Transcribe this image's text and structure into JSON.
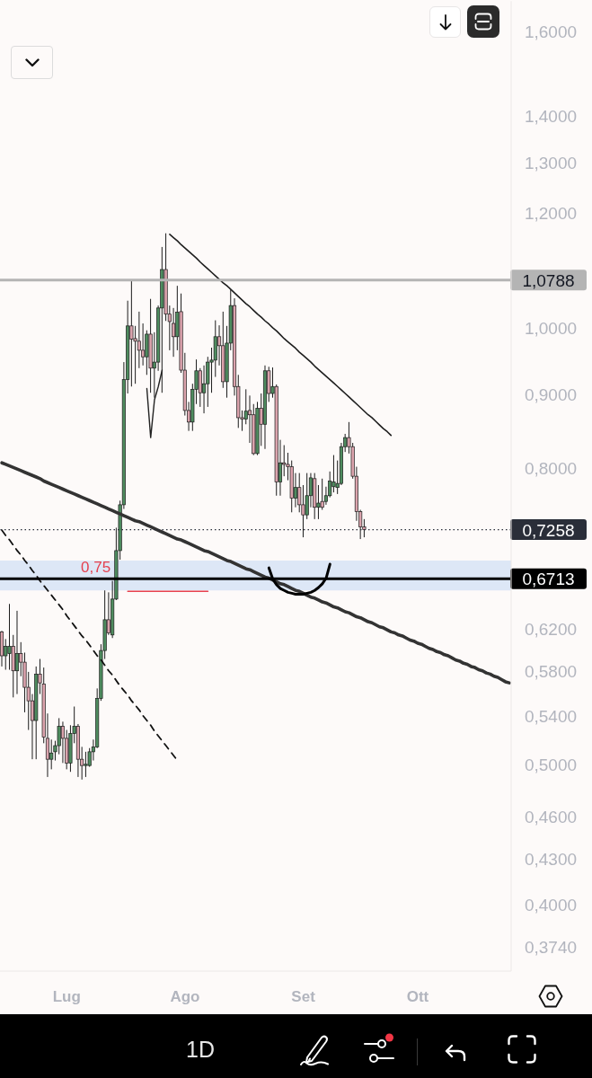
{
  "chart_data": {
    "type": "candlestick",
    "categories": [
      null,
      null,
      null,
      null,
      null,
      null,
      null,
      null,
      null,
      null,
      null,
      null,
      null,
      null,
      null,
      null,
      null,
      "Lug",
      null,
      null,
      null,
      null,
      null,
      null,
      null,
      null,
      null,
      null,
      null,
      null,
      null,
      null,
      null,
      null,
      null,
      null,
      null,
      null,
      null,
      null,
      null,
      null,
      null,
      null,
      null,
      null,
      null,
      null,
      "Ago",
      null,
      null,
      null,
      null,
      null,
      null,
      null,
      null,
      null,
      null,
      null,
      null,
      null,
      null,
      null,
      null,
      null,
      null,
      null,
      null,
      null,
      null,
      null,
      null,
      null,
      null,
      null,
      null,
      null,
      null,
      "Set",
      null,
      null,
      null,
      null,
      null,
      null,
      null,
      null,
      null,
      null,
      null,
      null,
      null,
      null,
      null,
      null,
      null,
      null,
      null,
      null,
      null,
      null,
      null,
      null,
      null,
      null,
      null,
      null,
      null,
      "Ott",
      null,
      null,
      null,
      null,
      null,
      null,
      null,
      null,
      null,
      null,
      null,
      null,
      null,
      null,
      null,
      null,
      null,
      null,
      null,
      null,
      null,
      null,
      null,
      null
    ],
    "ohlc": [
      [
        0.617,
        0.618,
        0.584,
        0.594
      ],
      [
        0.594,
        0.61,
        0.581,
        0.603
      ],
      [
        0.596,
        0.645,
        0.581,
        0.603
      ],
      [
        0.603,
        0.614,
        0.556,
        0.58
      ],
      [
        0.58,
        0.638,
        0.559,
        0.596
      ],
      [
        0.596,
        0.607,
        0.575,
        0.588
      ],
      [
        0.588,
        0.597,
        0.543,
        0.565
      ],
      [
        0.565,
        0.579,
        0.528,
        0.553
      ],
      [
        0.553,
        0.559,
        0.504,
        0.536
      ],
      [
        0.536,
        0.584,
        0.504,
        0.577
      ],
      [
        0.577,
        0.591,
        0.559,
        0.569
      ],
      [
        0.568,
        0.583,
        0.517,
        0.522
      ],
      [
        0.521,
        0.542,
        0.49,
        0.504
      ],
      [
        0.504,
        0.52,
        0.496,
        0.509
      ],
      [
        0.51,
        0.519,
        0.503,
        0.515
      ],
      [
        0.515,
        0.538,
        0.508,
        0.531
      ],
      [
        0.531,
        0.535,
        0.501,
        0.521
      ],
      [
        0.521,
        0.528,
        0.496,
        0.501
      ],
      [
        0.501,
        0.532,
        0.494,
        0.525
      ],
      [
        0.525,
        0.548,
        0.517,
        0.531
      ],
      [
        0.531,
        0.533,
        0.49,
        0.504
      ],
      [
        0.504,
        0.514,
        0.488,
        0.499
      ],
      [
        0.499,
        0.51,
        0.49,
        0.5
      ],
      [
        0.499,
        0.513,
        0.498,
        0.51
      ],
      [
        0.51,
        0.52,
        0.503,
        0.514
      ],
      [
        0.514,
        0.564,
        0.513,
        0.555
      ],
      [
        0.555,
        0.605,
        0.553,
        0.599
      ],
      [
        0.599,
        0.659,
        0.591,
        0.629
      ],
      [
        0.629,
        0.657,
        0.614,
        0.616
      ],
      [
        0.614,
        0.669,
        0.611,
        0.65
      ],
      [
        0.65,
        0.728,
        0.649,
        0.702
      ],
      [
        0.702,
        0.76,
        0.692,
        0.755
      ],
      [
        0.755,
        0.947,
        0.75,
        0.921
      ],
      [
        0.921,
        1.044,
        0.901,
        1.003
      ],
      [
        1.003,
        1.079,
        0.911,
        0.982
      ],
      [
        0.983,
        1.003,
        0.915,
        0.979
      ],
      [
        0.979,
        1.026,
        0.938,
        0.965
      ],
      [
        0.965,
        1.007,
        0.942,
        0.955
      ],
      [
        0.955,
        0.996,
        0.928,
        0.99
      ],
      [
        0.99,
        1.047,
        0.902,
        0.938
      ],
      [
        0.938,
        0.993,
        0.895,
        0.947
      ],
      [
        0.947,
        1.036,
        0.934,
        1.032
      ],
      [
        1.032,
        1.137,
        0.902,
        1.097
      ],
      [
        1.097,
        1.162,
        1.011,
        1.022
      ],
      [
        1.022,
        1.036,
        0.965,
        1.01
      ],
      [
        1.007,
        1.032,
        0.955,
        0.986
      ],
      [
        0.986,
        1.069,
        0.965,
        1.025
      ],
      [
        1.026,
        1.056,
        0.931,
        0.935
      ],
      [
        0.935,
        0.961,
        0.87,
        0.877
      ],
      [
        0.877,
        0.889,
        0.849,
        0.861
      ],
      [
        0.861,
        0.915,
        0.849,
        0.907
      ],
      [
        0.907,
        0.951,
        0.886,
        0.934
      ],
      [
        0.934,
        0.938,
        0.882,
        0.902
      ],
      [
        0.902,
        0.942,
        0.873,
        0.915
      ],
      [
        0.915,
        0.955,
        0.882,
        0.947
      ],
      [
        0.947,
        0.969,
        0.902,
        0.95
      ],
      [
        0.95,
        1.012,
        0.925,
        0.986
      ],
      [
        0.986,
        1.004,
        0.942,
        0.972
      ],
      [
        0.972,
        1.026,
        0.909,
        0.918
      ],
      [
        0.918,
        1.003,
        0.895,
        0.976
      ],
      [
        0.976,
        1.062,
        0.965,
        1.036
      ],
      [
        1.036,
        1.048,
        0.898,
        0.911
      ],
      [
        0.911,
        0.928,
        0.853,
        0.867
      ],
      [
        0.867,
        0.877,
        0.849,
        0.865
      ],
      [
        0.865,
        0.907,
        0.858,
        0.876
      ],
      [
        0.877,
        0.898,
        0.833,
        0.871
      ],
      [
        0.871,
        0.886,
        0.817,
        0.819
      ],
      [
        0.819,
        0.889,
        0.817,
        0.88
      ],
      [
        0.88,
        0.901,
        0.829,
        0.858
      ],
      [
        0.858,
        0.942,
        0.825,
        0.934
      ],
      [
        0.934,
        0.94,
        0.889,
        0.901
      ],
      [
        0.901,
        0.939,
        0.895,
        0.911
      ],
      [
        0.911,
        0.914,
        0.766,
        0.783
      ],
      [
        0.783,
        0.837,
        0.766,
        0.807
      ],
      [
        0.807,
        0.83,
        0.79,
        0.805
      ],
      [
        0.805,
        0.82,
        0.785,
        0.802
      ],
      [
        0.802,
        0.81,
        0.746,
        0.763
      ],
      [
        0.763,
        0.794,
        0.752,
        0.776
      ],
      [
        0.776,
        0.794,
        0.746,
        0.755
      ],
      [
        0.755,
        0.779,
        0.717,
        0.743
      ],
      [
        0.743,
        0.794,
        0.738,
        0.766
      ],
      [
        0.766,
        0.794,
        0.752,
        0.788
      ],
      [
        0.787,
        0.794,
        0.738,
        0.752
      ],
      [
        0.752,
        0.779,
        0.738,
        0.757
      ],
      [
        0.759,
        0.787,
        0.749,
        0.752
      ],
      [
        0.759,
        0.777,
        0.755,
        0.766
      ],
      [
        0.766,
        0.796,
        0.764,
        0.784
      ],
      [
        0.777,
        0.817,
        0.77,
        0.783
      ],
      [
        0.776,
        0.81,
        0.768,
        0.781
      ],
      [
        0.781,
        0.833,
        0.779,
        0.828
      ],
      [
        0.828,
        0.845,
        0.821,
        0.84
      ],
      [
        0.84,
        0.861,
        0.819,
        0.828
      ],
      [
        0.828,
        0.833,
        0.787,
        0.79
      ],
      [
        0.79,
        0.802,
        0.736,
        0.747
      ],
      [
        0.747,
        0.749,
        0.715,
        0.729
      ],
      [
        0.729,
        0.738,
        0.717,
        0.7258
      ],
      null,
      null,
      null,
      null,
      null,
      null,
      null,
      null,
      null,
      null,
      null,
      null,
      null,
      null,
      null,
      null,
      null,
      null,
      null,
      null,
      null,
      null,
      null,
      null,
      null,
      null,
      null,
      null,
      null,
      null,
      null,
      null,
      null,
      null,
      null,
      null,
      null,
      null
    ],
    "colors": [
      "#dba3ad",
      "#4e8c5f",
      "#4e8c5f",
      "#dba3ad",
      "#4e8c5f",
      "#dba3ad",
      "#dba3ad",
      "#dba3ad",
      "#dba3ad",
      "#4e8c5f",
      "#dba3ad",
      "#dba3ad",
      "#dba3ad",
      "#4e8c5f",
      "#4e8c5f",
      "#4e8c5f",
      "#dba3ad",
      "#dba3ad",
      "#4e8c5f",
      "#4e8c5f",
      "#dba3ad",
      "#dba3ad",
      "#4e8c5f",
      "#4e8c5f",
      "#4e8c5f",
      "#4e8c5f",
      "#4e8c5f",
      "#4e8c5f",
      "#dba3ad",
      "#4e8c5f",
      "#4e8c5f",
      "#4e8c5f",
      "#4e8c5f",
      "#4e8c5f",
      "#dba3ad",
      "#dba3ad",
      "#dba3ad",
      "#dba3ad",
      "#4e8c5f",
      "#dba3ad",
      "#4e8c5f",
      "#4e8c5f",
      "#4e8c5f",
      "#dba3ad",
      "#dba3ad",
      "#dba3ad",
      "#4e8c5f",
      "#dba3ad",
      "#dba3ad",
      "#dba3ad",
      "#4e8c5f",
      "#4e8c5f",
      "#dba3ad",
      "#4e8c5f",
      "#4e8c5f",
      "#4e8c5f",
      "#4e8c5f",
      "#dba3ad",
      "#dba3ad",
      "#4e8c5f",
      "#4e8c5f",
      "#dba3ad",
      "#dba3ad",
      "#dba3ad",
      "#4e8c5f",
      "#dba3ad",
      "#dba3ad",
      "#4e8c5f",
      "#dba3ad",
      "#4e8c5f",
      "#dba3ad",
      "#4e8c5f",
      "#dba3ad",
      "#4e8c5f",
      "#dba3ad",
      "#dba3ad",
      "#dba3ad",
      "#4e8c5f",
      "#dba3ad",
      "#dba3ad",
      "#4e8c5f",
      "#4e8c5f",
      "#dba3ad",
      "#4e8c5f",
      "#dba3ad",
      "#4e8c5f",
      "#4e8c5f",
      "#4e8c5f",
      "#4e8c5f",
      "#4e8c5f",
      "#4e8c5f",
      "#dba3ad",
      "#dba3ad",
      "#dba3ad",
      "#dba3ad",
      "#dba3ad",
      null,
      null,
      null,
      null,
      null,
      null,
      null,
      null,
      null,
      null,
      null,
      null,
      null,
      null,
      null,
      null,
      null,
      null,
      null,
      null,
      null,
      null,
      null,
      null,
      null,
      null,
      null,
      null,
      null,
      null,
      null,
      null,
      null,
      null,
      null,
      null,
      null,
      null
    ],
    "series": [
      {
        "type": "line",
        "color": "#1e1e1e",
        "values": [
          null,
          null,
          null,
          null,
          null,
          null,
          null,
          null,
          null,
          null,
          null,
          null,
          null,
          null,
          null,
          null,
          null,
          null,
          null,
          null,
          null,
          null,
          null,
          null,
          null,
          null,
          null,
          null,
          null,
          null,
          null,
          null,
          null,
          null,
          null,
          null,
          null,
          null,
          null,
          null,
          null,
          null,
          null,
          null,
          1.16,
          1.154,
          1.148,
          1.141,
          1.135,
          1.129,
          1.123,
          1.117,
          1.11,
          1.104,
          1.098,
          1.092,
          1.086,
          1.08,
          1.074,
          1.069,
          1.063,
          1.057,
          1.051,
          1.045,
          1.039,
          1.034,
          1.028,
          1.022,
          1.017,
          1.011,
          1.006,
          1.0,
          0.995,
          0.989,
          0.983,
          0.978,
          0.973,
          0.968,
          0.962,
          0.957,
          0.952,
          0.947,
          0.941,
          0.936,
          0.931,
          0.926,
          0.921,
          0.916,
          0.911,
          0.906,
          0.901,
          0.896,
          0.891,
          0.886,
          0.881,
          0.876,
          0.871,
          0.867,
          0.862,
          0.857,
          0.852,
          0.848,
          0.843,
          null,
          null,
          null,
          null,
          null,
          null,
          null,
          null,
          null,
          null,
          null,
          null,
          null,
          null,
          null,
          null,
          null,
          null,
          null,
          null,
          null,
          null,
          null,
          null,
          null,
          null,
          null,
          null,
          null,
          null,
          null
        ]
      },
      {
        "type": "line",
        "color": "#333333",
        "values": [
          0.807,
          0.805,
          0.803,
          0.801,
          0.799,
          0.797,
          0.795,
          0.793,
          0.791,
          0.789,
          0.787,
          0.784,
          0.782,
          0.78,
          0.778,
          0.776,
          0.774,
          0.772,
          0.77,
          0.768,
          0.766,
          0.764,
          0.762,
          0.76,
          0.758,
          0.756,
          0.754,
          0.752,
          0.75,
          0.748,
          0.746,
          0.744,
          0.742,
          0.74,
          0.738,
          0.736,
          0.735,
          0.733,
          0.731,
          0.729,
          0.727,
          0.725,
          0.723,
          0.721,
          0.719,
          0.717,
          0.715,
          0.714,
          0.712,
          0.71,
          0.708,
          0.706,
          0.704,
          0.702,
          0.701,
          0.699,
          0.697,
          0.695,
          0.693,
          0.691,
          0.69,
          0.688,
          0.686,
          0.684,
          0.682,
          0.681,
          0.679,
          0.677,
          0.675,
          0.673,
          0.672,
          0.67,
          0.668,
          0.666,
          0.665,
          0.663,
          0.661,
          0.659,
          0.658,
          0.656,
          0.654,
          0.652,
          0.651,
          0.649,
          0.647,
          0.646,
          0.644,
          0.642,
          0.641,
          0.639,
          0.637,
          0.636,
          0.634,
          0.632,
          0.631,
          0.629,
          0.627,
          0.626,
          0.624,
          0.622,
          0.621,
          0.619,
          0.617,
          0.616,
          0.614,
          0.613,
          0.611,
          0.609,
          0.608,
          0.606,
          0.605,
          0.603,
          0.601,
          0.6,
          0.598,
          0.597,
          0.595,
          0.594,
          0.592,
          0.59,
          0.589,
          0.587,
          0.586,
          0.584,
          0.583,
          0.581,
          0.58,
          0.578,
          0.577,
          0.575,
          0.574,
          0.572,
          0.57,
          0.569
        ]
      },
      {
        "type": "line",
        "color": "#111111",
        "line_style": "dashed",
        "values": [
          0.725,
          0.719,
          0.714,
          0.708,
          0.702,
          0.697,
          0.691,
          0.686,
          0.68,
          0.675,
          0.669,
          0.664,
          0.659,
          0.654,
          0.649,
          0.644,
          0.639,
          0.633,
          0.628,
          0.623,
          0.618,
          0.613,
          0.609,
          0.604,
          0.599,
          0.594,
          0.59,
          0.585,
          0.58,
          0.576,
          0.571,
          0.566,
          0.562,
          0.558,
          0.553,
          0.549,
          0.545,
          0.54,
          0.536,
          0.532,
          0.527,
          0.523,
          0.519,
          0.515,
          0.511,
          0.507,
          0.503,
          null,
          null,
          null,
          null,
          null,
          null,
          null,
          null,
          null,
          null,
          null,
          null,
          null,
          null,
          null,
          null,
          null,
          null,
          null,
          null,
          null,
          null,
          null,
          null,
          null,
          null,
          null,
          null,
          null,
          null,
          null,
          null,
          null,
          null,
          null,
          null,
          null,
          null,
          null,
          null,
          null,
          null,
          null,
          null,
          null,
          null,
          null,
          null,
          null,
          null,
          null,
          null,
          null,
          null,
          null,
          null,
          null,
          null,
          null,
          null,
          null,
          null,
          null,
          null,
          null,
          null,
          null,
          null,
          null,
          null,
          null,
          null,
          null,
          null,
          null,
          null,
          null,
          null,
          null,
          null,
          null,
          null,
          null,
          null,
          null,
          null,
          null
        ]
      },
      {
        "type": "line",
        "color": "#e8424f",
        "values": [
          null,
          null,
          null,
          null,
          null,
          null,
          null,
          null,
          null,
          null,
          null,
          null,
          null,
          null,
          null,
          null,
          null,
          null,
          null,
          null,
          null,
          null,
          null,
          null,
          null,
          null,
          null,
          null,
          null,
          null,
          null,
          null,
          null,
          0.658,
          0.658,
          0.658,
          0.658,
          0.658,
          0.658,
          0.658,
          0.658,
          0.658,
          0.658,
          0.658,
          0.658,
          0.658,
          0.658,
          0.658,
          0.658,
          0.658,
          0.658,
          0.658,
          0.658,
          0.658,
          0.658,
          null,
          null,
          null,
          null,
          null,
          null,
          null,
          null,
          null,
          null,
          null,
          null,
          null,
          null,
          null,
          null,
          null,
          null,
          null,
          null,
          null,
          null,
          null,
          null,
          null,
          null,
          null,
          null,
          null,
          null,
          null,
          null,
          null,
          null,
          null,
          null,
          null,
          null,
          null,
          null,
          null,
          null,
          null,
          null,
          null,
          null,
          null,
          null,
          null,
          null,
          null,
          null,
          null,
          null,
          null,
          null,
          null,
          null,
          null,
          null,
          null,
          null,
          null,
          null,
          null,
          null,
          null,
          null,
          null,
          null,
          null,
          null,
          null,
          null,
          null,
          null,
          null,
          null,
          null
        ]
      },
      {
        "type": "line",
        "color": "#000000",
        "values": [
          null,
          null,
          null,
          null,
          null,
          null,
          null,
          null,
          null,
          null,
          null,
          null,
          null,
          null,
          null,
          null,
          null,
          null,
          null,
          null,
          null,
          null,
          null,
          null,
          null,
          null,
          null,
          null,
          null,
          null,
          null,
          null,
          null,
          null,
          null,
          null,
          null,
          null,
          null,
          null,
          null,
          null,
          null,
          null,
          null,
          null,
          null,
          null,
          null,
          null,
          null,
          null,
          null,
          null,
          null,
          null,
          null,
          null,
          null,
          null,
          null,
          null,
          null,
          null,
          null,
          null,
          null,
          null,
          null,
          null,
          0.683,
          0.671,
          0.665,
          0.661,
          0.659,
          0.657,
          0.656,
          0.655,
          0.655,
          0.655,
          0.656,
          0.657,
          0.659,
          0.662,
          0.666,
          0.672,
          0.687,
          null,
          null,
          null,
          null,
          null,
          null,
          null,
          null,
          null,
          null,
          null,
          null,
          null,
          null,
          null,
          null,
          null,
          null,
          null,
          null,
          null,
          null,
          null,
          null,
          null,
          null,
          null,
          null,
          null,
          null,
          null,
          null,
          null,
          null,
          null,
          null,
          null,
          null,
          null,
          null,
          null,
          null,
          null,
          null,
          null,
          null,
          null
        ]
      },
      {
        "type": "line",
        "color": "#222222",
        "values": [
          null,
          null,
          null,
          null,
          null,
          null,
          null,
          null,
          null,
          null,
          null,
          null,
          null,
          null,
          null,
          null,
          null,
          null,
          null,
          null,
          null,
          null,
          null,
          null,
          null,
          null,
          null,
          null,
          null,
          null,
          null,
          null,
          null,
          null,
          null,
          null,
          null,
          null,
          0.908,
          0.84,
          0.892,
          0.911,
          0.935,
          null,
          null,
          null,
          null,
          null,
          null,
          null,
          null,
          null,
          null,
          null,
          null,
          null,
          null,
          null,
          null,
          null,
          null,
          null,
          null,
          null,
          null,
          null,
          null,
          null,
          null,
          null,
          null,
          null,
          null,
          null,
          null,
          null,
          null,
          null,
          null,
          null,
          null,
          null,
          null,
          null,
          null,
          null,
          null,
          null,
          null,
          null,
          null,
          null,
          null,
          null,
          null,
          null,
          null,
          null,
          null,
          null,
          null,
          null,
          null,
          null,
          null,
          null,
          null,
          null,
          null,
          null,
          null,
          null,
          null,
          null,
          null,
          null,
          null,
          null,
          null,
          null,
          null,
          null,
          null,
          null,
          null,
          null,
          null,
          null,
          null,
          null,
          null,
          null,
          null,
          null
        ]
      }
    ],
    "ref_lines": [
      {
        "axis": "y",
        "value": 1.0788,
        "label": "1,0788",
        "color": "#b4b4b4"
      },
      {
        "axis": "y",
        "value": 0.7258,
        "label": "0,7258",
        "color": "#2a2e39",
        "line_style": "dotted"
      },
      {
        "axis": "y",
        "value": 0.6713,
        "label": "0,6713",
        "color": "#000000"
      }
    ],
    "bands": [
      {
        "axis": "y",
        "from": 0.659,
        "to": 0.691,
        "color": "#dde7f6"
      }
    ],
    "annotations": [
      "0,75",
      "1D"
    ],
    "ylim": [
      0.36,
      1.68
    ],
    "yticks": [
      {
        "value": 1.6,
        "label": "1,6000"
      },
      {
        "value": 1.4,
        "label": "1,4000"
      },
      {
        "value": 1.3,
        "label": "1,3000"
      },
      {
        "value": 1.2,
        "label": "1,2000"
      },
      {
        "value": 1.0,
        "label": "1,0000"
      },
      {
        "value": 0.9,
        "label": "0,9000"
      },
      {
        "value": 0.8,
        "label": "0,8000"
      },
      {
        "value": 0.62,
        "label": "0,6200"
      },
      {
        "value": 0.58,
        "label": "0,5800"
      },
      {
        "value": 0.54,
        "label": "0,5400"
      },
      {
        "value": 0.5,
        "label": "0,5000"
      },
      {
        "value": 0.46,
        "label": "0,4600"
      },
      {
        "value": 0.43,
        "label": "0,4300"
      },
      {
        "value": 0.4,
        "label": "0,4000"
      },
      {
        "value": 0.374,
        "label": "0,3740"
      }
    ],
    "log": true
  }
}
